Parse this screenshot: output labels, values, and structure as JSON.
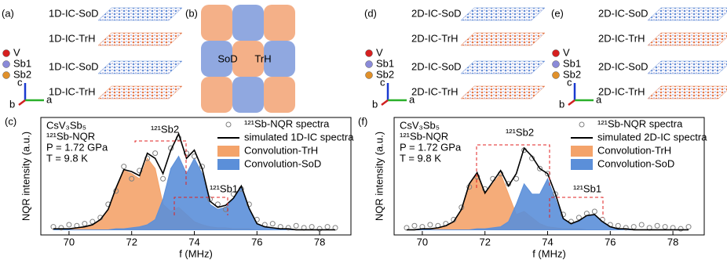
{
  "panels": {
    "a": {
      "label": "(a)",
      "layers": [
        "1D-IC-SoD",
        "1D-IC-TrH",
        "1D-IC-SoD",
        "1D-IC-TrH"
      ]
    },
    "b": {
      "label": "(b)",
      "domains": [
        "SoD",
        "TrH"
      ]
    },
    "d": {
      "label": "(d)",
      "layers": [
        "2D-IC-SoD",
        "2D-IC-TrH",
        "2D-IC-SoD",
        "2D-IC-TrH"
      ]
    },
    "e": {
      "label": "(e)",
      "layers": [
        "2D-IC-SoD",
        "2D-IC-TrH",
        "2D-IC-SoD",
        "2D-IC-TrH"
      ]
    },
    "atoms": [
      "V",
      "Sb1",
      "Sb2"
    ],
    "axes": [
      "c",
      "b",
      "a"
    ]
  },
  "chart_data": [
    {
      "type": "line",
      "panel": "(c)",
      "xlabel": "f (MHz)",
      "ylabel": "NQR intensity (a.u.)",
      "info": [
        "CsV₃Sb₅",
        "¹²¹Sb-NQR",
        "P = 1.72 GPa",
        "T = 9.8 K"
      ],
      "annotations": [
        "¹²¹Sb2",
        "¹²¹Sb1"
      ],
      "xlim": [
        69.1,
        79.0
      ],
      "xticks": [
        70,
        72,
        74,
        76,
        78
      ],
      "ylim": [
        -0.05,
        1.1
      ],
      "x": [
        69.5,
        69.75,
        70,
        70.25,
        70.5,
        70.75,
        71,
        71.25,
        71.5,
        71.75,
        72,
        72.25,
        72.5,
        72.75,
        73,
        73.25,
        73.5,
        73.75,
        74,
        74.25,
        74.5,
        74.75,
        75,
        75.25,
        75.5,
        75.75,
        76,
        76.25,
        76.5,
        76.75,
        77,
        77.25,
        77.5,
        77.75,
        78,
        78.25,
        78.5
      ],
      "series": [
        {
          "name": "¹²¹Sb-NQR spectra",
          "kind": "scatter",
          "color": "#808080",
          "values": [
            0.03,
            0.02,
            0.05,
            0.04,
            0.06,
            0.08,
            0.12,
            0.25,
            0.38,
            0.62,
            0.5,
            0.58,
            0.7,
            0.75,
            0.5,
            0.8,
            0.9,
            0.75,
            0.72,
            0.62,
            0.3,
            0.25,
            0.2,
            0.35,
            0.4,
            0.25,
            0.1,
            0.05,
            0.06,
            0.03,
            0.02,
            0.04,
            0.02,
            0.03,
            0.01,
            0.03,
            0.02
          ]
        },
        {
          "name": "simulated 1D-IC spectra",
          "kind": "line",
          "color": "#000000",
          "values": [
            0.01,
            0.01,
            0.01,
            0.02,
            0.03,
            0.05,
            0.1,
            0.2,
            0.41,
            0.59,
            0.57,
            0.53,
            0.75,
            0.7,
            0.55,
            0.78,
            0.94,
            0.7,
            0.78,
            0.6,
            0.28,
            0.22,
            0.24,
            0.31,
            0.43,
            0.21,
            0.06,
            0.03,
            0.02,
            0.01,
            0.01,
            0,
            0,
            0,
            0,
            0,
            0
          ]
        },
        {
          "name": "Convolution-TrH",
          "kind": "area",
          "color": "#f4a36a",
          "values": [
            0.01,
            0.01,
            0.01,
            0.02,
            0.03,
            0.05,
            0.1,
            0.2,
            0.4,
            0.58,
            0.55,
            0.5,
            0.7,
            0.6,
            0.25,
            0.18,
            0.22,
            0.15,
            0.08,
            0.05,
            0.03,
            0.02,
            0.02,
            0.01,
            0.01,
            0.01,
            0,
            0,
            0,
            0,
            0,
            0,
            0,
            0,
            0,
            0,
            0
          ]
        },
        {
          "name": "Convolution-SoD",
          "kind": "area",
          "color": "#5b8fd9",
          "values": [
            0,
            0,
            0,
            0,
            0,
            0,
            0,
            0,
            0.01,
            0.01,
            0.02,
            0.03,
            0.05,
            0.1,
            0.3,
            0.6,
            0.72,
            0.55,
            0.7,
            0.55,
            0.25,
            0.2,
            0.22,
            0.3,
            0.42,
            0.2,
            0.06,
            0.03,
            0.02,
            0.01,
            0.01,
            0,
            0,
            0,
            0,
            0,
            0
          ]
        }
      ]
    },
    {
      "type": "line",
      "panel": "(f)",
      "xlabel": "f (MHz)",
      "ylabel": "NQR intensity (a.u.)",
      "info": [
        "CsV₃Sb₅",
        "¹²¹Sb-NQR",
        "P = 1.72 GPa",
        "T = 9.8 K"
      ],
      "annotations": [
        "¹²¹Sb2",
        "¹²¹Sb1"
      ],
      "xlim": [
        69.1,
        79.0
      ],
      "xticks": [
        70,
        72,
        74,
        76,
        78
      ],
      "ylim": [
        -0.05,
        1.1
      ],
      "x": [
        69.5,
        69.75,
        70,
        70.25,
        70.5,
        70.75,
        71,
        71.25,
        71.5,
        71.75,
        72,
        72.25,
        72.5,
        72.75,
        73,
        73.25,
        73.5,
        73.75,
        74,
        74.25,
        74.5,
        74.75,
        75,
        75.25,
        75.5,
        75.75,
        76,
        76.25,
        76.5,
        76.75,
        77,
        77.25,
        77.5,
        77.75,
        78,
        78.25,
        78.5
      ],
      "series": [
        {
          "name": "¹²¹Sb-NQR spectra",
          "kind": "scatter",
          "color": "#808080",
          "values": [
            0.02,
            0.04,
            0.03,
            0.05,
            0.04,
            0.06,
            0.1,
            0.22,
            0.42,
            0.52,
            0.4,
            0.5,
            0.55,
            0.45,
            0.5,
            0.78,
            0.7,
            0.6,
            0.55,
            0.35,
            0.15,
            0.08,
            0.12,
            0.16,
            0.18,
            0.1,
            0.05,
            0.04,
            0.02,
            0.03,
            0.05,
            0.02,
            0.04,
            0.03,
            0.02,
            0.01,
            0.03
          ]
        },
        {
          "name": "simulated 2D-IC spectra",
          "kind": "line",
          "color": "#000000",
          "values": [
            0,
            0,
            0.01,
            0.01,
            0.02,
            0.04,
            0.08,
            0.2,
            0.45,
            0.56,
            0.36,
            0.47,
            0.58,
            0.43,
            0.55,
            0.8,
            0.72,
            0.6,
            0.55,
            0.35,
            0.11,
            0.06,
            0.09,
            0.14,
            0.15,
            0.08,
            0.03,
            0.01,
            0.01,
            0,
            0,
            0,
            0,
            0,
            0,
            0,
            0
          ]
        },
        {
          "name": "Convolution-TrH",
          "kind": "area",
          "color": "#f4a36a",
          "values": [
            0,
            0,
            0.01,
            0.01,
            0.02,
            0.04,
            0.08,
            0.2,
            0.45,
            0.55,
            0.35,
            0.45,
            0.55,
            0.35,
            0.15,
            0.18,
            0.12,
            0.06,
            0.03,
            0.02,
            0.01,
            0.01,
            0.01,
            0,
            0,
            0,
            0,
            0,
            0,
            0,
            0,
            0,
            0,
            0,
            0,
            0,
            0
          ]
        },
        {
          "name": "Convolution-SoD",
          "kind": "area",
          "color": "#5b8fd9",
          "values": [
            0,
            0,
            0,
            0,
            0,
            0,
            0,
            0,
            0,
            0.01,
            0.01,
            0.02,
            0.03,
            0.08,
            0.25,
            0.45,
            0.35,
            0.35,
            0.5,
            0.3,
            0.1,
            0.05,
            0.08,
            0.14,
            0.15,
            0.08,
            0.03,
            0.01,
            0.01,
            0,
            0,
            0,
            0,
            0,
            0,
            0,
            0
          ]
        }
      ]
    }
  ]
}
